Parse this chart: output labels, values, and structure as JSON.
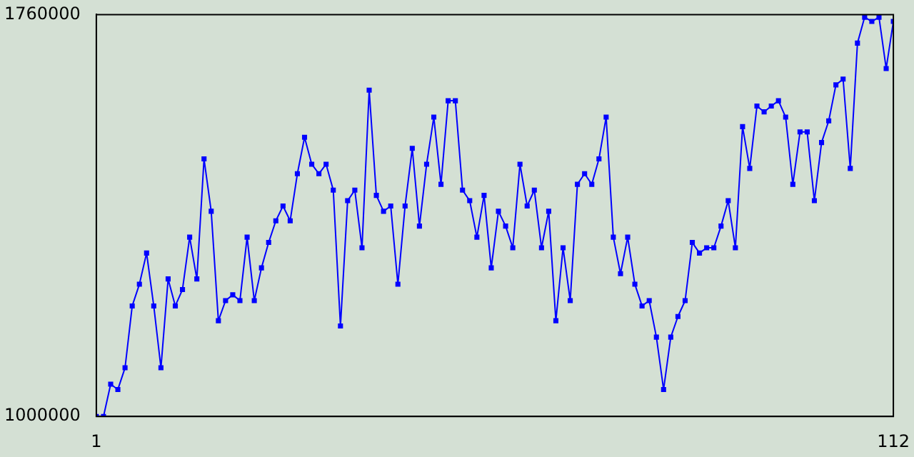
{
  "chart_data": {
    "type": "line",
    "x": [
      1,
      2,
      3,
      4,
      5,
      6,
      7,
      8,
      9,
      10,
      11,
      12,
      13,
      14,
      15,
      16,
      17,
      18,
      19,
      20,
      21,
      22,
      23,
      24,
      25,
      26,
      27,
      28,
      29,
      30,
      31,
      32,
      33,
      34,
      35,
      36,
      37,
      38,
      39,
      40,
      41,
      42,
      43,
      44,
      45,
      46,
      47,
      48,
      49,
      50,
      51,
      52,
      53,
      54,
      55,
      56,
      57,
      58,
      59,
      60,
      61,
      62,
      63,
      64,
      65,
      66,
      67,
      68,
      69,
      70,
      71,
      72,
      73,
      74,
      75,
      76,
      77,
      78,
      79,
      80,
      81,
      82,
      83,
      84,
      85,
      86,
      87,
      88,
      89,
      90,
      91,
      92,
      93,
      94,
      95,
      96,
      97,
      98,
      99,
      100,
      101,
      102,
      103,
      104,
      105,
      106,
      107,
      108,
      109,
      110,
      111,
      112
    ],
    "series": [
      {
        "color": "#0000ff",
        "values": [
          1000000,
          1000000,
          1061000,
          1051000,
          1092000,
          1209000,
          1250000,
          1309000,
          1209000,
          1092000,
          1260000,
          1209000,
          1240000,
          1339000,
          1260000,
          1487000,
          1388000,
          1181000,
          1219000,
          1230000,
          1219000,
          1339000,
          1219000,
          1281000,
          1329000,
          1370000,
          1398000,
          1370000,
          1459000,
          1528000,
          1477000,
          1459000,
          1477000,
          1428000,
          1171000,
          1408000,
          1428000,
          1319000,
          1617000,
          1418000,
          1388000,
          1398000,
          1250000,
          1398000,
          1507000,
          1360000,
          1477000,
          1566000,
          1439000,
          1597000,
          1597000,
          1428000,
          1408000,
          1339000,
          1418000,
          1281000,
          1388000,
          1360000,
          1319000,
          1477000,
          1398000,
          1428000,
          1319000,
          1388000,
          1181000,
          1319000,
          1219000,
          1439000,
          1459000,
          1439000,
          1487000,
          1566000,
          1339000,
          1270000,
          1339000,
          1250000,
          1209000,
          1219000,
          1150000,
          1051000,
          1150000,
          1189000,
          1219000,
          1329000,
          1309000,
          1319000,
          1319000,
          1360000,
          1408000,
          1319000,
          1548000,
          1469000,
          1587000,
          1576000,
          1587000,
          1597000,
          1566000,
          1439000,
          1538000,
          1538000,
          1408000,
          1518000,
          1559000,
          1627000,
          1638000,
          1469000,
          1706000,
          1755000,
          1747000,
          1755000,
          1658000,
          1747000
        ]
      }
    ],
    "xlim": [
      1,
      112
    ],
    "xticks": [
      1,
      112
    ],
    "ylim": [
      1000000,
      1760000
    ],
    "yticks": [
      1000000,
      1760000
    ],
    "grid": false,
    "legend": false,
    "marker": "square",
    "line_style": "solid"
  }
}
